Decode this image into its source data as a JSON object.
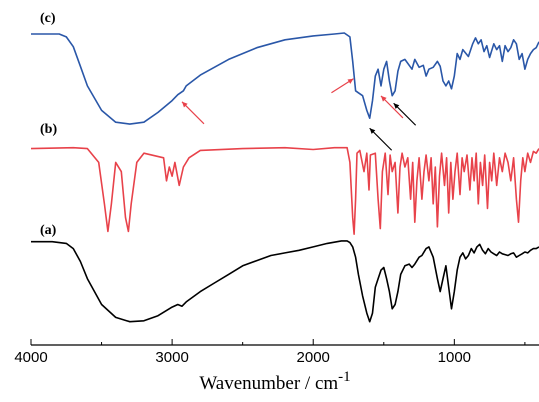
{
  "chart_data": {
    "type": "line",
    "xlabel": "Wavenumber / cm",
    "xlabel_superscript": "-1",
    "x_reversed": true,
    "xlim": [
      4000,
      400
    ],
    "xticks": [
      4000,
      3000,
      2000,
      1000
    ],
    "xtick_labels": [
      "4000",
      "3000",
      "2000",
      "1000"
    ],
    "grid": false,
    "y_axis_shown": false,
    "series": [
      {
        "label": "(c)",
        "color": "#2a57a8",
        "points": [
          [
            4000,
            0.98
          ],
          [
            3800,
            0.98
          ],
          [
            3750,
            0.95
          ],
          [
            3700,
            0.85
          ],
          [
            3650,
            0.65
          ],
          [
            3600,
            0.45
          ],
          [
            3500,
            0.2
          ],
          [
            3400,
            0.08
          ],
          [
            3300,
            0.06
          ],
          [
            3200,
            0.08
          ],
          [
            3100,
            0.18
          ],
          [
            3000,
            0.3
          ],
          [
            2960,
            0.36
          ],
          [
            2920,
            0.4
          ],
          [
            2900,
            0.45
          ],
          [
            2800,
            0.56
          ],
          [
            2600,
            0.72
          ],
          [
            2400,
            0.84
          ],
          [
            2200,
            0.92
          ],
          [
            2000,
            0.96
          ],
          [
            1850,
            0.98
          ],
          [
            1780,
            0.99
          ],
          [
            1740,
            0.95
          ],
          [
            1720,
            0.7
          ],
          [
            1700,
            0.4
          ],
          [
            1680,
            0.38
          ],
          [
            1650,
            0.35
          ],
          [
            1620,
            0.2
          ],
          [
            1600,
            0.12
          ],
          [
            1580,
            0.3
          ],
          [
            1560,
            0.55
          ],
          [
            1540,
            0.62
          ],
          [
            1520,
            0.45
          ],
          [
            1500,
            0.62
          ],
          [
            1480,
            0.7
          ],
          [
            1460,
            0.5
          ],
          [
            1440,
            0.35
          ],
          [
            1420,
            0.4
          ],
          [
            1400,
            0.6
          ],
          [
            1380,
            0.7
          ],
          [
            1350,
            0.72
          ],
          [
            1300,
            0.62
          ],
          [
            1280,
            0.72
          ],
          [
            1250,
            0.64
          ],
          [
            1220,
            0.66
          ],
          [
            1200,
            0.55
          ],
          [
            1180,
            0.62
          ],
          [
            1150,
            0.64
          ],
          [
            1120,
            0.7
          ],
          [
            1100,
            0.65
          ],
          [
            1080,
            0.5
          ],
          [
            1060,
            0.45
          ],
          [
            1040,
            0.5
          ],
          [
            1020,
            0.42
          ],
          [
            1000,
            0.55
          ],
          [
            980,
            0.78
          ],
          [
            960,
            0.72
          ],
          [
            940,
            0.82
          ],
          [
            900,
            0.75
          ],
          [
            870,
            0.88
          ],
          [
            850,
            0.94
          ],
          [
            830,
            0.88
          ],
          [
            810,
            0.92
          ],
          [
            790,
            0.8
          ],
          [
            770,
            0.86
          ],
          [
            750,
            0.74
          ],
          [
            720,
            0.88
          ],
          [
            700,
            0.82
          ],
          [
            680,
            0.86
          ],
          [
            660,
            0.7
          ],
          [
            640,
            0.86
          ],
          [
            620,
            0.8
          ],
          [
            600,
            0.84
          ],
          [
            580,
            0.92
          ],
          [
            560,
            0.88
          ],
          [
            540,
            0.72
          ],
          [
            520,
            0.78
          ],
          [
            500,
            0.62
          ],
          [
            480,
            0.72
          ],
          [
            460,
            0.78
          ],
          [
            440,
            0.82
          ],
          [
            420,
            0.84
          ],
          [
            400,
            0.9
          ]
        ]
      },
      {
        "label": "(b)",
        "color": "#e8424a",
        "points": [
          [
            4000,
            0.95
          ],
          [
            3700,
            0.96
          ],
          [
            3600,
            0.95
          ],
          [
            3520,
            0.8
          ],
          [
            3480,
            0.35
          ],
          [
            3455,
            0.05
          ],
          [
            3430,
            0.35
          ],
          [
            3400,
            0.8
          ],
          [
            3360,
            0.7
          ],
          [
            3330,
            0.2
          ],
          [
            3310,
            0.05
          ],
          [
            3290,
            0.35
          ],
          [
            3250,
            0.8
          ],
          [
            3200,
            0.9
          ],
          [
            3060,
            0.85
          ],
          [
            3040,
            0.6
          ],
          [
            3020,
            0.75
          ],
          [
            3000,
            0.65
          ],
          [
            2980,
            0.8
          ],
          [
            2950,
            0.55
          ],
          [
            2920,
            0.75
          ],
          [
            2880,
            0.85
          ],
          [
            2800,
            0.93
          ],
          [
            2500,
            0.95
          ],
          [
            2200,
            0.96
          ],
          [
            2000,
            0.94
          ],
          [
            1850,
            0.96
          ],
          [
            1760,
            0.96
          ],
          [
            1740,
            0.8
          ],
          [
            1720,
            0.2
          ],
          [
            1710,
            0.02
          ],
          [
            1700,
            0.4
          ],
          [
            1690,
            0.9
          ],
          [
            1670,
            0.93
          ],
          [
            1640,
            0.7
          ],
          [
            1620,
            0.9
          ],
          [
            1605,
            0.5
          ],
          [
            1595,
            0.88
          ],
          [
            1560,
            0.9
          ],
          [
            1540,
            0.4
          ],
          [
            1525,
            0.08
          ],
          [
            1510,
            0.7
          ],
          [
            1490,
            0.9
          ],
          [
            1470,
            0.45
          ],
          [
            1455,
            0.88
          ],
          [
            1440,
            0.7
          ],
          [
            1420,
            0.8
          ],
          [
            1400,
            0.25
          ],
          [
            1385,
            0.75
          ],
          [
            1370,
            0.9
          ],
          [
            1350,
            0.75
          ],
          [
            1330,
            0.85
          ],
          [
            1310,
            0.4
          ],
          [
            1295,
            0.8
          ],
          [
            1280,
            0.15
          ],
          [
            1265,
            0.6
          ],
          [
            1250,
            0.85
          ],
          [
            1230,
            0.4
          ],
          [
            1215,
            0.7
          ],
          [
            1200,
            0.88
          ],
          [
            1180,
            0.6
          ],
          [
            1165,
            0.85
          ],
          [
            1150,
            0.35
          ],
          [
            1135,
            0.75
          ],
          [
            1120,
            0.1
          ],
          [
            1105,
            0.65
          ],
          [
            1090,
            0.9
          ],
          [
            1070,
            0.55
          ],
          [
            1055,
            0.85
          ],
          [
            1040,
            0.25
          ],
          [
            1025,
            0.8
          ],
          [
            1010,
            0.4
          ],
          [
            995,
            0.7
          ],
          [
            980,
            0.9
          ],
          [
            960,
            0.45
          ],
          [
            945,
            0.85
          ],
          [
            930,
            0.7
          ],
          [
            910,
            0.88
          ],
          [
            890,
            0.5
          ],
          [
            875,
            0.85
          ],
          [
            860,
            0.6
          ],
          [
            845,
            0.9
          ],
          [
            830,
            0.35
          ],
          [
            815,
            0.8
          ],
          [
            800,
            0.55
          ],
          [
            785,
            0.88
          ],
          [
            765,
            0.3
          ],
          [
            750,
            0.8
          ],
          [
            735,
            0.6
          ],
          [
            720,
            0.9
          ],
          [
            700,
            0.55
          ],
          [
            680,
            0.85
          ],
          [
            660,
            0.7
          ],
          [
            640,
            0.9
          ],
          [
            620,
            0.8
          ],
          [
            600,
            0.6
          ],
          [
            580,
            0.85
          ],
          [
            560,
            0.4
          ],
          [
            545,
            0.15
          ],
          [
            530,
            0.6
          ],
          [
            515,
            0.85
          ],
          [
            500,
            0.7
          ],
          [
            480,
            0.9
          ],
          [
            460,
            0.8
          ],
          [
            440,
            0.92
          ],
          [
            420,
            0.9
          ],
          [
            400,
            0.95
          ]
        ]
      },
      {
        "label": "(a)",
        "color": "#000000",
        "points": [
          [
            4000,
            0.98
          ],
          [
            3850,
            0.98
          ],
          [
            3750,
            0.96
          ],
          [
            3700,
            0.9
          ],
          [
            3650,
            0.75
          ],
          [
            3600,
            0.55
          ],
          [
            3500,
            0.25
          ],
          [
            3400,
            0.1
          ],
          [
            3300,
            0.05
          ],
          [
            3200,
            0.06
          ],
          [
            3100,
            0.12
          ],
          [
            3000,
            0.22
          ],
          [
            2960,
            0.25
          ],
          [
            2930,
            0.23
          ],
          [
            2900,
            0.28
          ],
          [
            2800,
            0.4
          ],
          [
            2700,
            0.5
          ],
          [
            2600,
            0.6
          ],
          [
            2500,
            0.7
          ],
          [
            2400,
            0.76
          ],
          [
            2300,
            0.82
          ],
          [
            2200,
            0.85
          ],
          [
            2100,
            0.88
          ],
          [
            2000,
            0.92
          ],
          [
            1900,
            0.96
          ],
          [
            1800,
            0.99
          ],
          [
            1760,
            0.99
          ],
          [
            1740,
            0.97
          ],
          [
            1720,
            0.92
          ],
          [
            1700,
            0.8
          ],
          [
            1680,
            0.6
          ],
          [
            1650,
            0.35
          ],
          [
            1620,
            0.15
          ],
          [
            1600,
            0.05
          ],
          [
            1580,
            0.15
          ],
          [
            1560,
            0.45
          ],
          [
            1540,
            0.55
          ],
          [
            1520,
            0.65
          ],
          [
            1500,
            0.68
          ],
          [
            1480,
            0.55
          ],
          [
            1460,
            0.4
          ],
          [
            1440,
            0.2
          ],
          [
            1420,
            0.25
          ],
          [
            1400,
            0.4
          ],
          [
            1380,
            0.6
          ],
          [
            1350,
            0.7
          ],
          [
            1320,
            0.72
          ],
          [
            1300,
            0.68
          ],
          [
            1280,
            0.72
          ],
          [
            1250,
            0.8
          ],
          [
            1230,
            0.82
          ],
          [
            1200,
            0.9
          ],
          [
            1180,
            0.92
          ],
          [
            1150,
            0.8
          ],
          [
            1120,
            0.55
          ],
          [
            1100,
            0.4
          ],
          [
            1080,
            0.55
          ],
          [
            1060,
            0.7
          ],
          [
            1040,
            0.45
          ],
          [
            1020,
            0.2
          ],
          [
            1000,
            0.4
          ],
          [
            980,
            0.65
          ],
          [
            960,
            0.8
          ],
          [
            940,
            0.85
          ],
          [
            920,
            0.78
          ],
          [
            900,
            0.82
          ],
          [
            880,
            0.9
          ],
          [
            860,
            0.85
          ],
          [
            840,
            0.92
          ],
          [
            820,
            0.95
          ],
          [
            800,
            0.88
          ],
          [
            780,
            0.84
          ],
          [
            760,
            0.9
          ],
          [
            740,
            0.86
          ],
          [
            720,
            0.84
          ],
          [
            700,
            0.82
          ],
          [
            680,
            0.86
          ],
          [
            660,
            0.84
          ],
          [
            640,
            0.83
          ],
          [
            620,
            0.82
          ],
          [
            600,
            0.84
          ],
          [
            580,
            0.85
          ],
          [
            560,
            0.8
          ],
          [
            540,
            0.82
          ],
          [
            520,
            0.84
          ],
          [
            500,
            0.86
          ],
          [
            480,
            0.85
          ],
          [
            460,
            0.88
          ],
          [
            440,
            0.9
          ],
          [
            420,
            0.9
          ],
          [
            400,
            0.92
          ]
        ]
      }
    ],
    "annotations": [
      {
        "type": "arrow",
        "color": "#e8424a",
        "series": "(c)",
        "at_x": 2930,
        "direction": "up-left"
      },
      {
        "type": "arrow",
        "color": "#e8424a",
        "series": "(c)",
        "at_x": 1715,
        "direction": "up-right"
      },
      {
        "type": "arrow",
        "color": "#e8424a",
        "series": "(c)",
        "at_x": 1520,
        "direction": "up-left"
      },
      {
        "type": "arrow",
        "color": "#000000",
        "series": "(c)",
        "at_x": 1600,
        "direction": "up-left"
      },
      {
        "type": "arrow",
        "color": "#000000",
        "series": "(c)",
        "at_x": 1430,
        "direction": "up-left"
      }
    ]
  }
}
